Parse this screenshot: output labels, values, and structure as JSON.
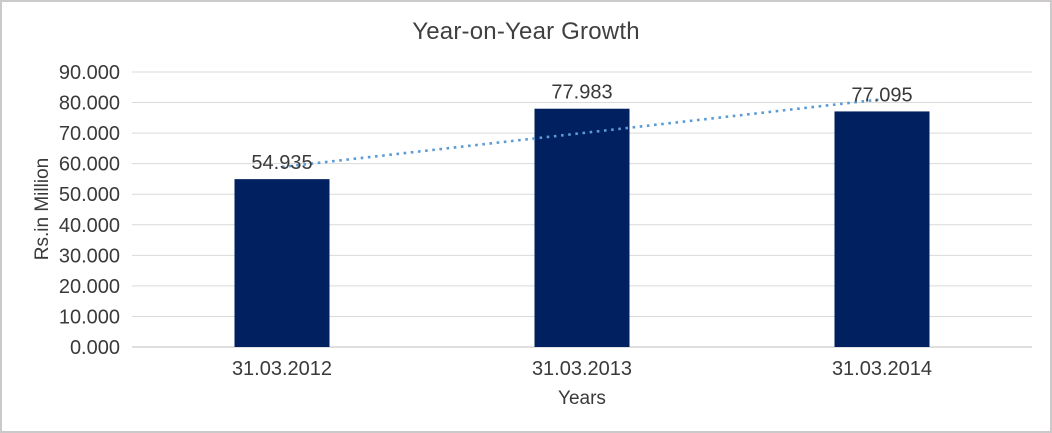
{
  "frame": {
    "background": "#FFFFFF",
    "border_color": "#CBC9C9"
  },
  "chart_data": {
    "type": "bar",
    "title": "Year-on-Year Growth",
    "xlabel": "Years",
    "ylabel": "Rs.in Million",
    "categories": [
      "31.03.2012",
      "31.03.2013",
      "31.03.2014"
    ],
    "values": [
      54.935,
      77.983,
      77.095
    ],
    "data_labels": [
      "54.935",
      "77.983",
      "77.095"
    ],
    "ylim": [
      0,
      90
    ],
    "ytick_step": 10,
    "ytick_labels": [
      "0.000",
      "10.000",
      "20.000",
      "30.000",
      "40.000",
      "50.000",
      "60.000",
      "70.000",
      "80.000",
      "90.000"
    ],
    "grid": true,
    "legend": "none",
    "trendline": {
      "type": "linear",
      "style": "dotted",
      "color": "#5B9BD5"
    },
    "colors": {
      "bar": "#002060",
      "gridline": "#D9D9D9",
      "baseline": "#BFBFBF",
      "tick_text": "#3A3A3A",
      "title_text": "#404040"
    }
  }
}
